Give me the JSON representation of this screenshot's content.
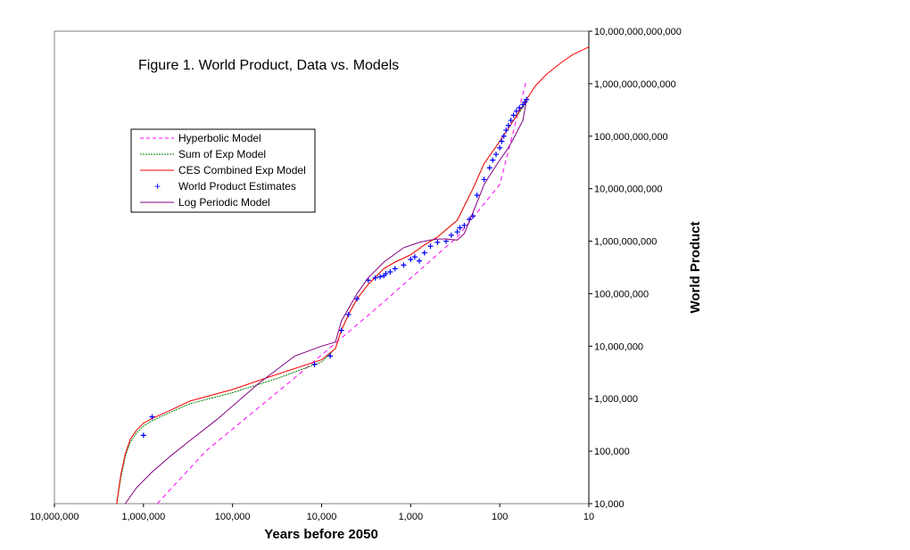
{
  "chart_data": {
    "type": "line",
    "title": "Figure 1.  World Product, Data vs. Models",
    "xlabel": "Years before 2050",
    "ylabel": "World Product",
    "x_scale": "log-reversed",
    "y_scale": "log",
    "xlim": [
      10000000,
      10
    ],
    "ylim": [
      10000,
      10000000000000
    ],
    "x_ticks": [
      10000000,
      1000000,
      100000,
      10000,
      1000,
      100,
      10
    ],
    "x_tick_labels": [
      "10,000,000",
      "1,000,000",
      "100,000",
      "10,000",
      "1,000",
      "100",
      "10"
    ],
    "y_ticks": [
      10000,
      100000,
      1000000,
      10000000,
      100000000,
      1000000000,
      10000000000,
      100000000000,
      1000000000000,
      10000000000000
    ],
    "y_tick_labels": [
      "10,000",
      "100,000",
      "1,000,000",
      "10,000,000",
      "100,000,000",
      "1,000,000,000",
      "10,000,000,000",
      "100,000,000,000",
      "1,000,000,000,000",
      "10,000,000,000,000"
    ],
    "legend_position": "upper-left",
    "grid": false,
    "series": [
      {
        "name": "Hyperbolic Model",
        "style": "dashed",
        "color": "#ff00ff",
        "x": [
          700000,
          200000,
          20000,
          2000,
          300,
          100,
          50
        ],
        "y": [
          10000,
          100000,
          2500000,
          70000000,
          1200000000,
          12000000000,
          1200000000000
        ]
      },
      {
        "name": "Sum of Exp Model",
        "style": "dotted",
        "color": "#008000",
        "x": [
          2000000,
          1800000,
          1600000,
          1400000,
          1200000,
          1000000,
          800000,
          500000,
          300000,
          100000,
          30000,
          10000,
          7000,
          6000,
          5000,
          4000,
          3000,
          2000,
          1500,
          1000,
          700,
          500,
          300,
          200,
          150,
          100,
          70,
          55,
          50
        ],
        "y": [
          10000,
          30000,
          80000,
          150000,
          220000,
          300000,
          380000,
          550000,
          800000,
          1300000,
          2500000,
          5000000,
          9000000,
          20000000,
          40000000,
          80000000,
          150000000,
          300000000,
          400000000,
          550000000,
          850000000,
          1200000000,
          2500000000,
          10000000000,
          30000000000,
          80000000000,
          200000000000,
          350000000000,
          450000000000
        ]
      },
      {
        "name": "CES Combined Exp Model",
        "style": "solid",
        "color": "#ff0000",
        "x": [
          2000000,
          1800000,
          1600000,
          1400000,
          1200000,
          1000000,
          800000,
          500000,
          300000,
          100000,
          30000,
          10000,
          7000,
          6000,
          5000,
          4000,
          3000,
          2000,
          1500,
          1000,
          700,
          500,
          300,
          200,
          150,
          100,
          70,
          50,
          40,
          30,
          20,
          15,
          10
        ],
        "y": [
          10000,
          35000,
          90000,
          170000,
          250000,
          340000,
          420000,
          600000,
          900000,
          1500000,
          3000000,
          5500000,
          9000000,
          20000000,
          40000000,
          80000000,
          150000000,
          300000000,
          400000000,
          550000000,
          850000000,
          1200000000,
          2500000000,
          10000000000,
          30000000000,
          80000000000,
          200000000000,
          500000000000,
          900000000000,
          1500000000000,
          2600000000000,
          3600000000000,
          5000000000000
        ]
      },
      {
        "name": "World Product Estimates",
        "style": "markers",
        "color": "#0000ff",
        "x": [
          1000000,
          800000,
          12000,
          8000,
          6000,
          5000,
          4000,
          3000,
          2500,
          2200,
          2000,
          1900,
          1700,
          1500,
          1200,
          1000,
          900,
          800,
          700,
          600,
          500,
          400,
          350,
          300,
          280,
          250,
          220,
          200,
          180,
          150,
          130,
          120,
          110,
          100,
          95,
          90,
          85,
          80,
          75,
          70,
          65,
          60,
          55,
          52,
          50
        ],
        "y": [
          200000,
          450000,
          4500000,
          6500000,
          20000000,
          40000000,
          80000000,
          180000000,
          200000000,
          210000000,
          220000000,
          240000000,
          260000000,
          300000000,
          350000000,
          450000000,
          500000000,
          420000000,
          600000000,
          800000000,
          950000000,
          1000000000,
          1300000000,
          1500000000,
          1800000000,
          2000000000,
          2600000000,
          3000000000,
          7500000000,
          15000000000,
          25000000000,
          35000000000,
          45000000000,
          60000000000,
          80000000000,
          100000000000,
          130000000000,
          160000000000,
          200000000000,
          250000000000,
          300000000000,
          350000000000,
          400000000000,
          450000000000,
          500000000000
        ]
      },
      {
        "name": "Log Periodic Model",
        "style": "solid",
        "color": "#800080",
        "x": [
          1600000,
          1200000,
          800000,
          500000,
          300000,
          150000,
          50000,
          20000,
          10000,
          7000,
          6000,
          4000,
          3000,
          2000,
          1200,
          800,
          600,
          500,
          400,
          300,
          250,
          200,
          170,
          150,
          120,
          100,
          80,
          70,
          60,
          55,
          50
        ],
        "y": [
          10000,
          20000,
          40000,
          80000,
          160000,
          400000,
          2000000,
          6500000,
          10000000,
          12000000,
          30000000,
          100000000,
          200000000,
          400000000,
          750000000,
          950000000,
          1050000000,
          1100000000,
          1100000000,
          1050000000,
          1400000000,
          3500000000,
          7000000000,
          12000000000,
          22000000000,
          35000000000,
          60000000000,
          90000000000,
          150000000000,
          200000000000,
          500000000000
        ]
      }
    ]
  }
}
